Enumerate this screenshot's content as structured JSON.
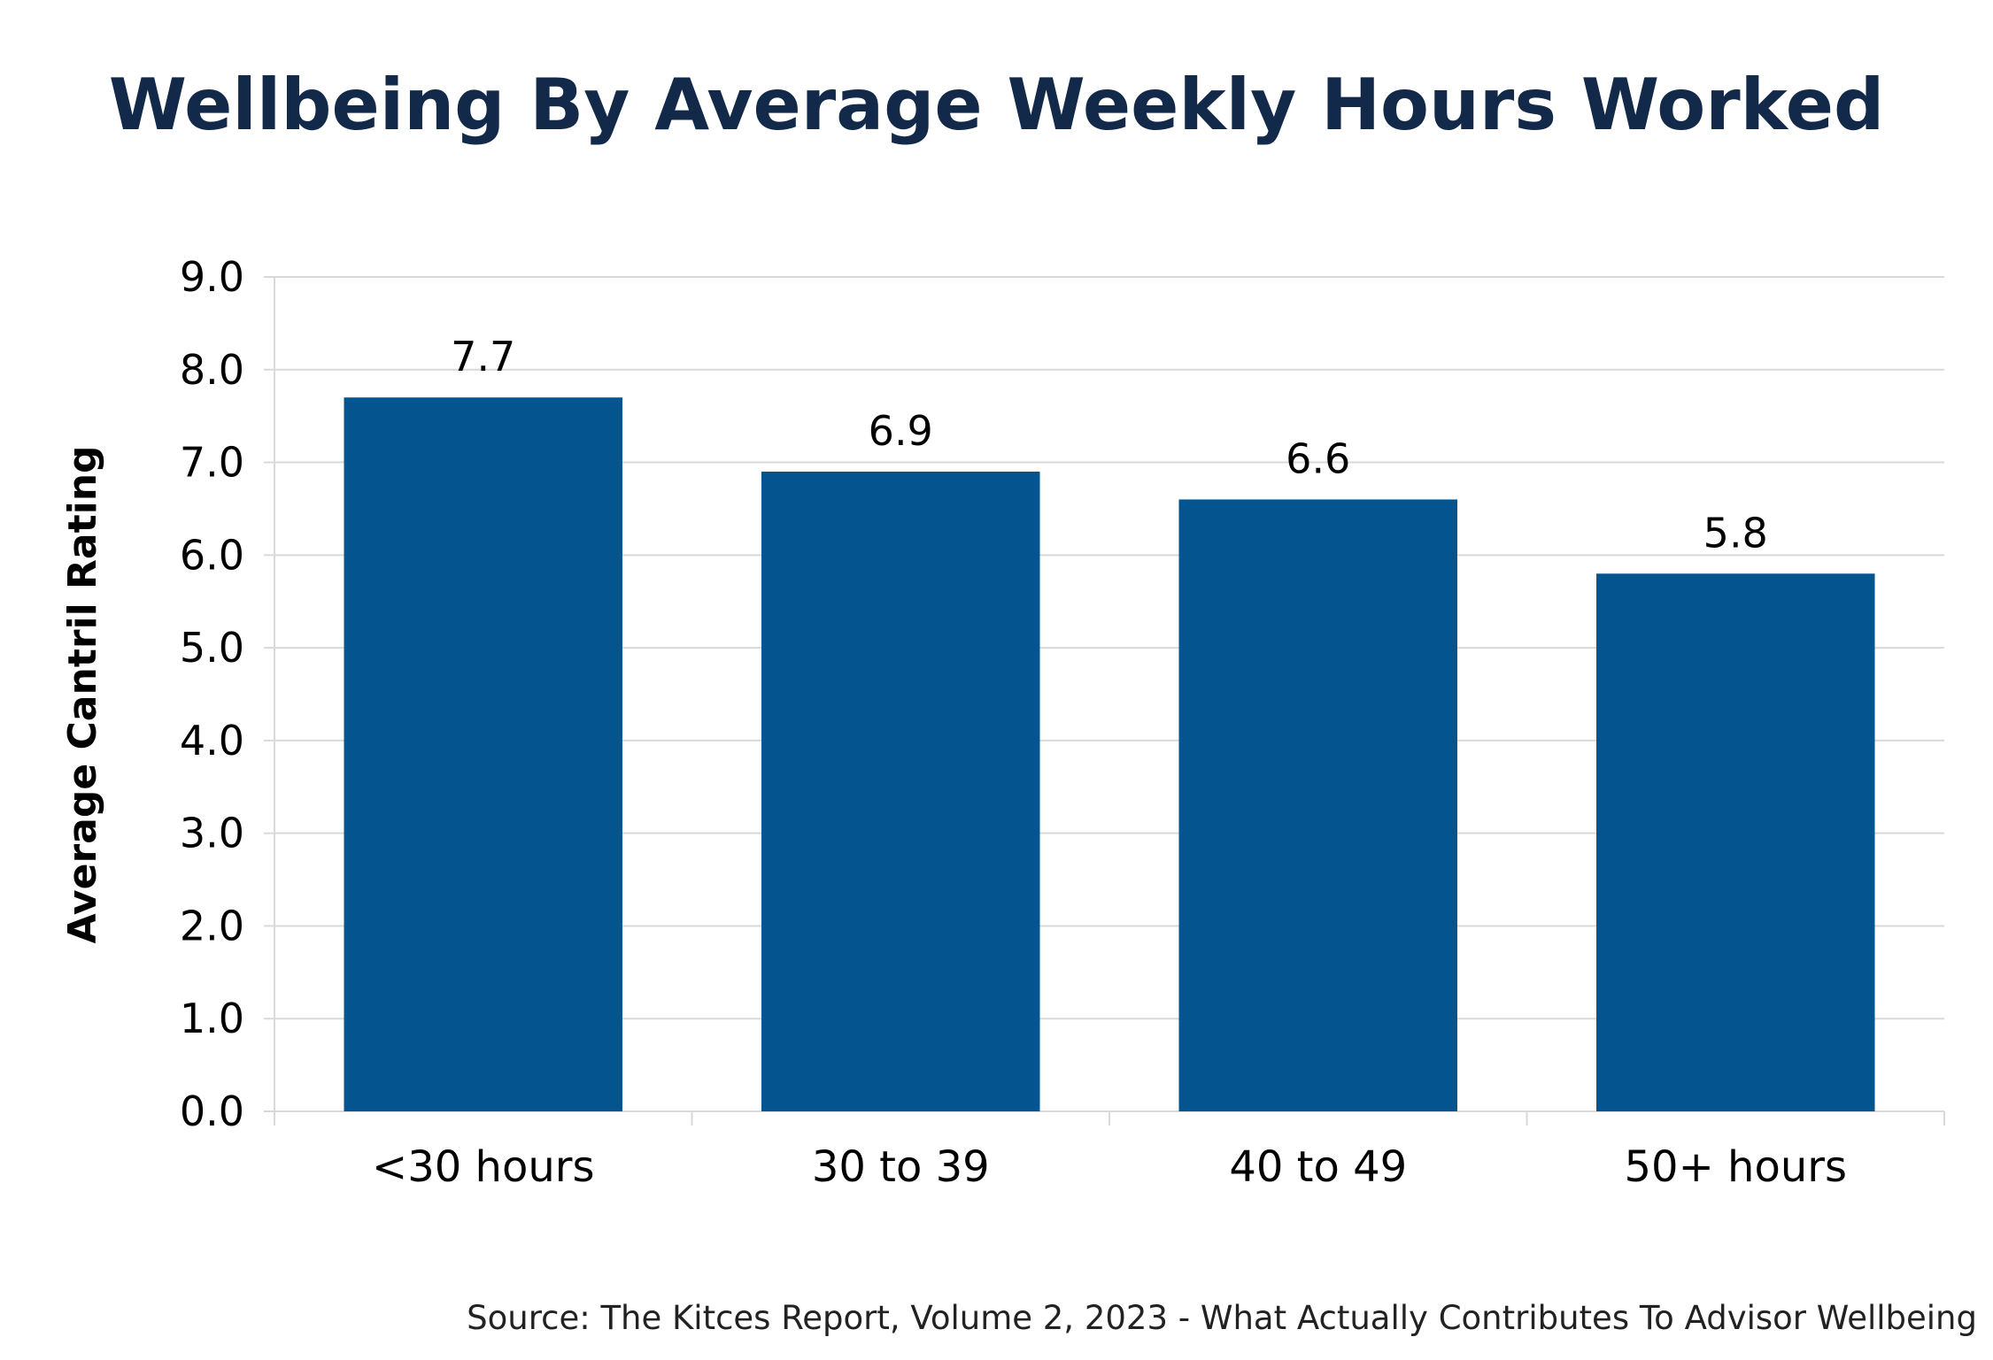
{
  "chart_data": {
    "type": "bar",
    "title": "Wellbeing By Average Weekly Hours Worked",
    "xlabel": "",
    "ylabel": "Average Cantril Rating",
    "categories": [
      "<30 hours",
      "30 to 39",
      "40 to 49",
      "50+ hours"
    ],
    "values": [
      7.7,
      6.9,
      6.6,
      5.8
    ],
    "data_labels": [
      "7.7",
      "6.9",
      "6.6",
      "5.8"
    ],
    "ylim": [
      0,
      9
    ],
    "yticks": [
      "0.0",
      "1.0",
      "2.0",
      "3.0",
      "4.0",
      "5.0",
      "6.0",
      "7.0",
      "8.0",
      "9.0"
    ],
    "grid": true,
    "legend": "none",
    "bar_color": "#03548f",
    "grid_color": "#d9d9d9",
    "source": "Source: The Kitces Report, Volume 2, 2023 - What Actually Contributes To Advisor Wellbeing"
  }
}
